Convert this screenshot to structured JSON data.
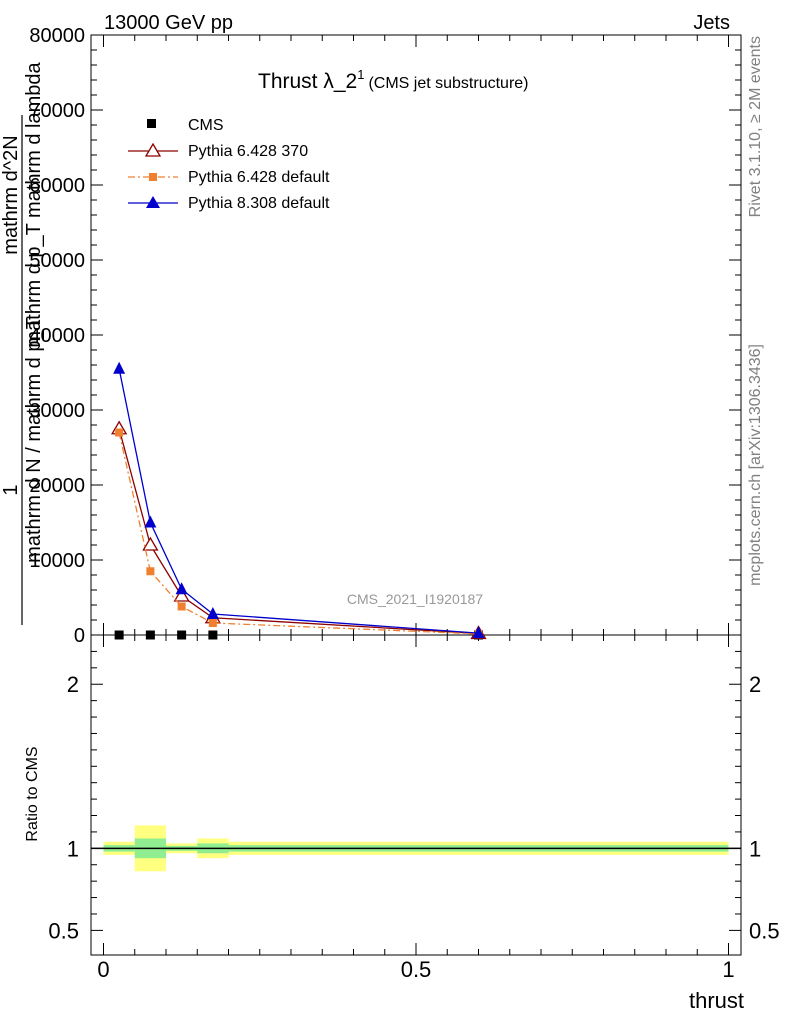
{
  "header": {
    "left": "13000 GeV pp",
    "right": "Jets"
  },
  "side_labels": {
    "rivet": "Rivet 3.1.10, ≥ 2M events",
    "mcplots": "mcplots.cern.ch [arXiv:1306.3436]"
  },
  "watermark": "CMS_2021_I1920187",
  "chart_data": [
    {
      "type": "line",
      "title": "Thrust λ_2",
      "title_sup": "1",
      "subtitle": "(CMS jet substructure)",
      "ylabel_lines": [
        "1",
        "mathrm d N / mathrm d p_T",
        "mathrm d^2N",
        "mathrm d p_T mathrm d lambda"
      ],
      "ylim": [
        0,
        80000
      ],
      "xlim": [
        -0.02,
        1.02
      ],
      "yticks": [
        0,
        10000,
        20000,
        30000,
        40000,
        50000,
        60000,
        70000,
        80000
      ],
      "ytick_labels": [
        "0",
        "10000",
        "20000",
        "30000",
        "40000",
        "50000",
        "60000",
        "70000",
        "80000"
      ],
      "legend_position": "top-left",
      "series": [
        {
          "name": "CMS",
          "color": "#000000",
          "marker": "square",
          "x": [
            0.025,
            0.075,
            0.125,
            0.175,
            0.6
          ],
          "y": [
            0,
            0,
            0,
            0,
            0
          ]
        },
        {
          "name": "Pythia 6.428 370",
          "color": "#8b0000",
          "marker": "open-triangle",
          "line": "solid",
          "x": [
            0.025,
            0.075,
            0.125,
            0.175,
            0.6
          ],
          "y": [
            27500,
            12000,
            5200,
            2300,
            200
          ]
        },
        {
          "name": "Pythia 6.428 default",
          "color": "#f08030",
          "marker": "square",
          "line": "dashdot",
          "x": [
            0.025,
            0.075,
            0.125,
            0.175,
            0.6
          ],
          "y": [
            27000,
            8500,
            3800,
            1600,
            150
          ]
        },
        {
          "name": "Pythia 8.308 default",
          "color": "#0000cc",
          "marker": "triangle",
          "line": "solid",
          "x": [
            0.025,
            0.075,
            0.125,
            0.175,
            0.6
          ],
          "y": [
            35500,
            15000,
            6100,
            2800,
            250
          ]
        }
      ]
    },
    {
      "type": "area",
      "ylabel": "Ratio to CMS",
      "xlabel": "thrust",
      "ylim": [
        0.35,
        2.3
      ],
      "xlim": [
        -0.02,
        1.02
      ],
      "yticks": [
        0.5,
        1,
        2
      ],
      "ytick_labels": [
        "0.5",
        "1",
        "2"
      ],
      "xticks": [
        0,
        0.5,
        1
      ],
      "xtick_labels": [
        "0",
        "0.5",
        "1"
      ],
      "reference_line": 1,
      "bands": [
        {
          "x0": 0.0,
          "x1": 0.05,
          "yellow": [
            0.96,
            1.04
          ],
          "green": [
            0.98,
            1.02
          ]
        },
        {
          "x0": 0.05,
          "x1": 0.1,
          "yellow": [
            0.86,
            1.14
          ],
          "green": [
            0.94,
            1.06
          ]
        },
        {
          "x0": 0.1,
          "x1": 0.15,
          "yellow": [
            0.97,
            1.03
          ],
          "green": [
            0.985,
            1.015
          ]
        },
        {
          "x0": 0.15,
          "x1": 0.2,
          "yellow": [
            0.94,
            1.06
          ],
          "green": [
            0.97,
            1.03
          ]
        },
        {
          "x0": 0.2,
          "x1": 1.0,
          "yellow": [
            0.96,
            1.04
          ],
          "green": [
            0.98,
            1.02
          ]
        }
      ]
    }
  ]
}
